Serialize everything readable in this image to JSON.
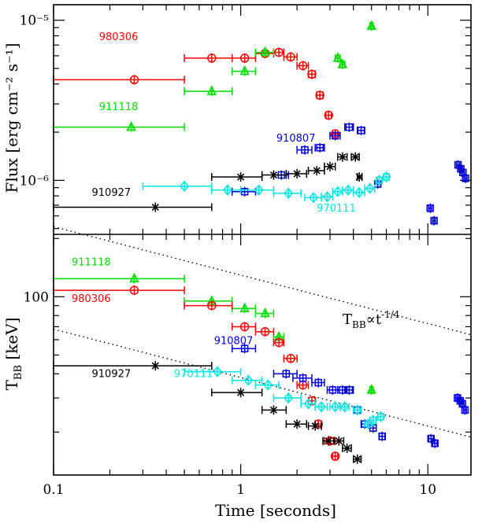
{
  "chart_data": [
    {
      "type": "scatter",
      "panel": "top",
      "ylabel": "Flux [erg cm⁻² s⁻¹]",
      "yscale": "log",
      "xscale": "log",
      "xlim": [
        0.1,
        17
      ],
      "ylim": [
        4.6e-07,
        1.25e-05
      ],
      "yticks": [
        {
          "v": 1e-06,
          "label": "10⁻⁶"
        },
        {
          "v": 1e-05,
          "label": "10⁻⁵"
        }
      ],
      "series": [
        {
          "name": "980306",
          "color": "#ff0000",
          "marker": "circle",
          "label_pos": [
            0.175,
            7.5e-06
          ],
          "points": [
            [
              0.27,
              4.25e-06,
              0.1,
              0.5
            ],
            [
              0.7,
              5.8e-06,
              0.5,
              0.9
            ],
            [
              1.05,
              5.8e-06,
              0.9,
              1.2
            ],
            [
              1.35,
              6.2e-06,
              1.2,
              1.5
            ],
            [
              1.6,
              6.3e-06,
              1.5,
              1.7
            ],
            [
              1.85,
              5.9e-06,
              1.7,
              2.0
            ],
            [
              2.15,
              5.2e-06,
              2.0,
              2.3
            ],
            [
              2.4,
              4.6e-06,
              2.3,
              2.5
            ],
            [
              2.65,
              3.4e-06,
              2.55,
              2.75
            ],
            [
              2.95,
              2.55e-06,
              2.85,
              3.05
            ],
            [
              3.2,
              1.95e-06,
              3.1,
              3.3
            ]
          ]
        },
        {
          "name": "911118",
          "color": "#00dd00",
          "marker": "triangle",
          "label_pos": [
            0.175,
            2.75e-06
          ],
          "points": [
            [
              0.26,
              2.15e-06,
              0.1,
              0.5
            ],
            [
              0.7,
              3.6e-06,
              0.5,
              0.9
            ],
            [
              1.05,
              4.8e-06,
              0.9,
              1.2
            ],
            [
              1.35,
              6.3e-06,
              1.2,
              1.5
            ],
            [
              3.3,
              5.8e-06,
              3.2,
              3.4
            ],
            [
              3.5,
              5.3e-06,
              3.4,
              3.6
            ],
            [
              5.0,
              9.2e-06,
              4.9,
              5.1
            ]
          ]
        },
        {
          "name": "910807",
          "color": "#0000dd",
          "marker": "square",
          "label_pos": [
            1.55,
            1.75e-06
          ],
          "points": [
            [
              1.05,
              8.5e-07,
              0.9,
              1.2
            ],
            [
              1.65,
              1.08e-06,
              1.5,
              1.8
            ],
            [
              2.2,
              1.55e-06,
              2.0,
              2.4
            ],
            [
              2.65,
              1.6e-06,
              2.5,
              2.8
            ],
            [
              3.2,
              1.9e-06,
              3.0,
              3.4
            ],
            [
              3.8,
              2.15e-06,
              3.6,
              4.0
            ],
            [
              4.4,
              2.05e-06,
              4.2,
              4.6
            ],
            [
              5.4,
              9.5e-07,
              5.2,
              5.6
            ],
            [
              10.3,
              6.7e-07,
              10.1,
              10.5
            ],
            [
              10.8,
              5.6e-07,
              10.6,
              11.0
            ],
            [
              14.5,
              1.25e-06,
              14.2,
              14.8
            ],
            [
              15.0,
              1.18e-06,
              14.7,
              15.3
            ],
            [
              15.4,
              1.12e-06,
              15.1,
              15.7
            ],
            [
              15.9,
              1.03e-06,
              15.6,
              16.2
            ]
          ]
        },
        {
          "name": "910927",
          "color": "#000000",
          "marker": "cross",
          "label_pos": [
            0.16,
            8e-07
          ],
          "points": [
            [
              0.35,
              6.8e-07,
              0.1,
              0.7
            ],
            [
              1.0,
              1.05e-06,
              0.7,
              1.3
            ],
            [
              1.5,
              1.08e-06,
              1.3,
              1.75
            ],
            [
              2.0,
              1.1e-06,
              1.75,
              2.25
            ],
            [
              2.55,
              1.15e-06,
              2.3,
              2.8
            ],
            [
              3.0,
              1.22e-06,
              2.8,
              3.2
            ],
            [
              3.5,
              1.4e-06,
              3.3,
              3.7
            ],
            [
              4.1,
              1.4e-06,
              3.9,
              4.3
            ],
            [
              4.3,
              1.05e-06,
              4.2,
              4.45
            ]
          ]
        },
        {
          "name": "970111",
          "color": "#00e5e5",
          "marker": "diamond",
          "label_pos": [
            2.55,
            6.4e-07
          ],
          "points": [
            [
              0.5,
              9.2e-07,
              0.3,
              0.7
            ],
            [
              0.85,
              8.7e-07,
              0.7,
              1.0
            ],
            [
              1.25,
              8.7e-07,
              1.0,
              1.5
            ],
            [
              1.8,
              8.3e-07,
              1.5,
              2.1
            ],
            [
              2.45,
              7.8e-07,
              2.2,
              2.7
            ],
            [
              2.9,
              7.9e-07,
              2.7,
              3.1
            ],
            [
              3.3,
              8.5e-07,
              3.1,
              3.5
            ],
            [
              3.75,
              8.7e-07,
              3.5,
              4.0
            ],
            [
              4.3,
              8.4e-07,
              4.0,
              4.6
            ],
            [
              4.9,
              8.9e-07,
              4.6,
              5.2
            ],
            [
              5.5,
              1e-06,
              5.3,
              5.7
            ],
            [
              6.0,
              1.05e-06,
              5.8,
              6.2
            ]
          ]
        }
      ]
    },
    {
      "type": "scatter",
      "panel": "bottom",
      "xlabel": "Time [seconds]",
      "ylabel": "T_BB [keV]",
      "yscale": "log",
      "xscale": "log",
      "xlim": [
        0.1,
        17
      ],
      "ylim": [
        12,
        210
      ],
      "xticks": [
        {
          "v": 0.1,
          "label": "0.1"
        },
        {
          "v": 1,
          "label": "1"
        },
        {
          "v": 10,
          "label": "10"
        }
      ],
      "yticks": [
        {
          "v": 100,
          "label": "100"
        }
      ],
      "annotation": "T_BB ∝ t^-1/4",
      "guide_lines": [
        {
          "x": [
            0.1,
            17
          ],
          "y0": 230,
          "slope": -0.25
        },
        {
          "x": [
            0.1,
            17
          ],
          "y0": 68,
          "slope": -0.25
        }
      ],
      "series": [
        {
          "name": "911118",
          "color": "#00dd00",
          "marker": "triangle",
          "label_pos": [
            0.125,
            145
          ],
          "points": [
            [
              0.27,
              124,
              0.1,
              0.5
            ],
            [
              0.7,
              95,
              0.5,
              0.9
            ],
            [
              1.05,
              87,
              0.9,
              1.2
            ],
            [
              1.35,
              82,
              1.2,
              1.5
            ],
            [
              1.6,
              62,
              1.5,
              1.7
            ],
            [
              5.0,
              33,
              4.9,
              5.1
            ]
          ]
        },
        {
          "name": "980306",
          "color": "#ff0000",
          "marker": "circle",
          "label_pos": [
            0.125,
            94
          ],
          "points": [
            [
              0.27,
              108,
              0.1,
              0.5
            ],
            [
              0.7,
              90,
              0.5,
              0.9
            ],
            [
              1.05,
              70,
              0.9,
              1.2
            ],
            [
              1.35,
              66,
              1.2,
              1.5
            ],
            [
              1.6,
              58,
              1.5,
              1.7
            ],
            [
              1.85,
              48,
              1.7,
              2.0
            ],
            [
              2.15,
              35,
              2.0,
              2.3
            ],
            [
              2.4,
              29,
              2.3,
              2.5
            ],
            [
              2.6,
              22,
              2.5,
              2.7
            ],
            [
              3.0,
              18,
              2.8,
              3.2
            ],
            [
              3.2,
              15,
              3.1,
              3.3
            ]
          ]
        },
        {
          "name": "910807",
          "color": "#0000dd",
          "marker": "square",
          "label_pos": [
            0.72,
            57
          ],
          "points": [
            [
              1.05,
              54,
              0.9,
              1.2
            ],
            [
              1.75,
              40,
              1.5,
              2.0
            ],
            [
              2.15,
              38,
              1.9,
              2.4
            ],
            [
              2.6,
              36,
              2.4,
              2.8
            ],
            [
              3.1,
              33,
              2.9,
              3.3
            ],
            [
              3.5,
              33,
              3.3,
              3.7
            ],
            [
              3.8,
              33,
              3.6,
              4.0
            ],
            [
              4.2,
              26,
              4.0,
              4.4
            ],
            [
              4.6,
              22,
              4.4,
              4.8
            ],
            [
              5.1,
              21,
              4.9,
              5.3
            ],
            [
              5.7,
              19,
              5.5,
              5.9
            ],
            [
              10.4,
              18.5,
              10.1,
              10.7
            ],
            [
              10.9,
              17.5,
              10.6,
              11.2
            ],
            [
              14.4,
              30,
              14.1,
              14.7
            ],
            [
              14.9,
              29,
              14.6,
              15.2
            ],
            [
              15.3,
              28,
              15.0,
              15.6
            ],
            [
              15.8,
              26,
              15.5,
              16.1
            ]
          ]
        },
        {
          "name": "910927",
          "color": "#000000",
          "marker": "cross",
          "label_pos": [
            0.16,
            38.5
          ],
          "points": [
            [
              0.35,
              44,
              0.1,
              0.7
            ],
            [
              1.0,
              32,
              0.7,
              1.3
            ],
            [
              1.5,
              26,
              1.3,
              1.75
            ],
            [
              2.0,
              22,
              1.75,
              2.25
            ],
            [
              2.5,
              21.5,
              2.3,
              2.7
            ],
            [
              2.95,
              18,
              2.75,
              3.15
            ],
            [
              3.35,
              18,
              3.15,
              3.55
            ],
            [
              3.7,
              16.5,
              3.5,
              3.9
            ],
            [
              4.2,
              14.5,
              4.0,
              4.4
            ]
          ]
        },
        {
          "name": "970111",
          "color": "#00e5e5",
          "marker": "diamond",
          "label_pos": [
            0.44,
            38.5
          ],
          "points": [
            [
              0.75,
              41,
              0.5,
              1.0
            ],
            [
              1.1,
              37,
              0.9,
              1.3
            ],
            [
              1.4,
              35,
              1.2,
              1.6
            ],
            [
              1.8,
              30,
              1.5,
              2.1
            ],
            [
              2.3,
              28,
              2.1,
              2.5
            ],
            [
              2.7,
              27,
              2.5,
              2.9
            ],
            [
              3.2,
              27,
              3.0,
              3.4
            ],
            [
              3.6,
              27,
              3.4,
              3.8
            ],
            [
              4.2,
              26,
              4.0,
              4.4
            ],
            [
              4.8,
              22,
              4.6,
              5.0
            ],
            [
              5.1,
              23,
              4.9,
              5.3
            ],
            [
              5.6,
              24,
              5.4,
              5.8
            ]
          ]
        }
      ]
    }
  ]
}
